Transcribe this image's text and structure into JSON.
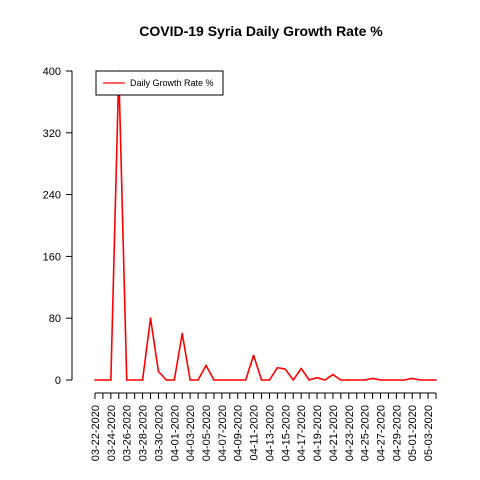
{
  "chart_data": {
    "type": "line",
    "title": "COVID-19 Syria Daily Growth Rate %",
    "xlabel": "",
    "ylabel": "",
    "ylim": [
      0,
      400
    ],
    "yticks": [
      0,
      80,
      160,
      240,
      320,
      400
    ],
    "legend": {
      "position": "top-left",
      "entries": [
        "Daily Growth Rate %"
      ]
    },
    "series": [
      {
        "name": "Daily Growth Rate %",
        "color": "#ff0000",
        "x": [
          "03-22-2020",
          "03-23-2020",
          "03-24-2020",
          "03-25-2020",
          "03-26-2020",
          "03-27-2020",
          "03-28-2020",
          "03-29-2020",
          "03-30-2020",
          "03-31-2020",
          "04-01-2020",
          "04-02-2020",
          "04-03-2020",
          "04-04-2020",
          "04-05-2020",
          "04-06-2020",
          "04-07-2020",
          "04-08-2020",
          "04-09-2020",
          "04-10-2020",
          "04-11-2020",
          "04-12-2020",
          "04-13-2020",
          "04-14-2020",
          "04-15-2020",
          "04-16-2020",
          "04-17-2020",
          "04-18-2020",
          "04-19-2020",
          "04-20-2020",
          "04-21-2020",
          "04-22-2020",
          "04-23-2020",
          "04-24-2020",
          "04-25-2020",
          "04-26-2020",
          "04-27-2020",
          "04-28-2020",
          "04-29-2020",
          "04-30-2020",
          "05-01-2020",
          "05-02-2020",
          "05-03-2020",
          "05-04-2020"
        ],
        "values": [
          0,
          0,
          0,
          400,
          0,
          0,
          0,
          80,
          11,
          0,
          0,
          60,
          0,
          0,
          19,
          0,
          0,
          0,
          0,
          0,
          32,
          0,
          0,
          16,
          14,
          0,
          15,
          0,
          3,
          0,
          7,
          0,
          0,
          0,
          0,
          2,
          0,
          0,
          0,
          0,
          2,
          0,
          0,
          0
        ]
      }
    ],
    "x_tick_labels": [
      "03-22-2020",
      "03-24-2020",
      "03-26-2020",
      "03-28-2020",
      "03-30-2020",
      "04-01-2020",
      "04-03-2020",
      "04-05-2020",
      "04-07-2020",
      "04-09-2020",
      "04-11-2020",
      "04-13-2020",
      "04-15-2020",
      "04-17-2020",
      "04-19-2020",
      "04-21-2020",
      "04-23-2020",
      "04-25-2020",
      "04-27-2020",
      "04-29-2020",
      "05-01-2020",
      "05-03-2020"
    ]
  }
}
